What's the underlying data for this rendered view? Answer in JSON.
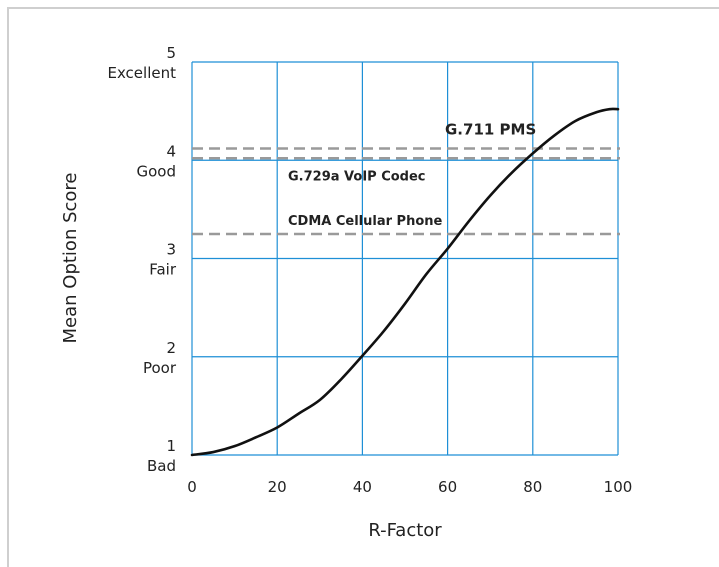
{
  "chart_data": {
    "type": "line",
    "xlabel": "R-Factor",
    "ylabel": "Mean Option Score",
    "xlim": [
      0,
      100
    ],
    "ylim": [
      1,
      5
    ],
    "x_ticks": [
      0,
      20,
      40,
      60,
      80,
      100
    ],
    "y_ticks": [
      {
        "value": 1,
        "label": "1",
        "quality": "Bad"
      },
      {
        "value": 2,
        "label": "2",
        "quality": "Poor"
      },
      {
        "value": 3,
        "label": "3",
        "quality": "Fair"
      },
      {
        "value": 4,
        "label": "4",
        "quality": "Good"
      },
      {
        "value": 5,
        "label": "5",
        "quality": "Excellent"
      }
    ],
    "grid": true,
    "series": [
      {
        "x": [
          0,
          5,
          10,
          15,
          20,
          25,
          30,
          35,
          40,
          45,
          50,
          55,
          60,
          65,
          70,
          75,
          80,
          85,
          90,
          95,
          98,
          100
        ],
        "y": [
          1.0,
          1.03,
          1.09,
          1.18,
          1.28,
          1.42,
          1.56,
          1.77,
          2.01,
          2.26,
          2.54,
          2.84,
          3.1,
          3.38,
          3.64,
          3.87,
          4.07,
          4.25,
          4.4,
          4.49,
          4.52,
          4.52
        ],
        "color": "#111111"
      }
    ],
    "reference_lines": [
      {
        "label": "G.711 PMS",
        "y": 4.12
      },
      {
        "label": "G.729a VoIP Codec",
        "y": 4.02
      },
      {
        "label": "CDMA Cellular Phone",
        "y": 3.25
      }
    ],
    "colors": {
      "grid": "#1e8fd6",
      "curve": "#111111",
      "reference": "#9a9a9a"
    }
  }
}
